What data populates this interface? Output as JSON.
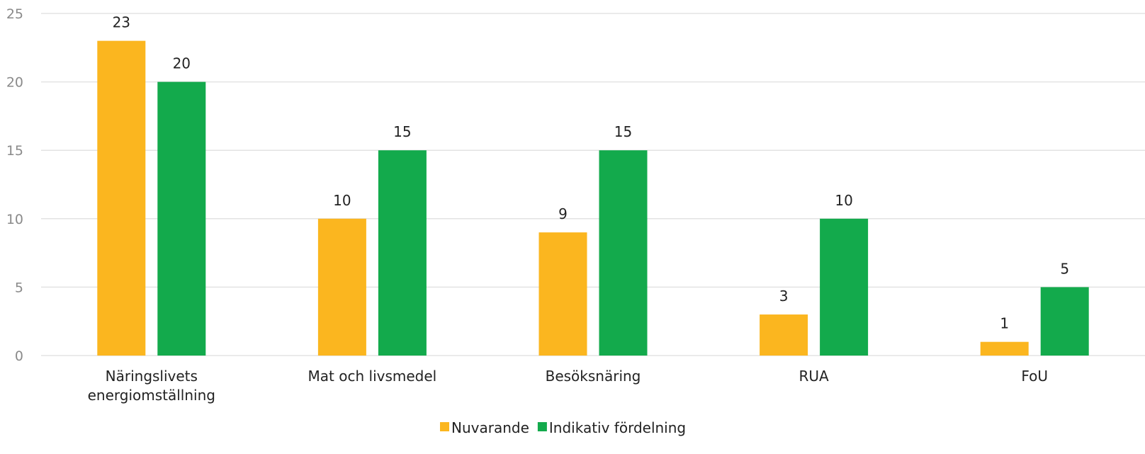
{
  "chart_data": {
    "type": "bar",
    "categories": [
      [
        "Näringslivets",
        "energiomställning"
      ],
      [
        "Mat och livsmedel"
      ],
      [
        "Besöksnäring"
      ],
      [
        "RUA"
      ],
      [
        "FoU"
      ]
    ],
    "series": [
      {
        "name": "Nuvarande",
        "color": "#FBB61F",
        "values": [
          23,
          10,
          9,
          3,
          1
        ]
      },
      {
        "name": "Indikativ fördelning",
        "color": "#13AA4C",
        "values": [
          20,
          15,
          15,
          10,
          5
        ]
      }
    ],
    "ylim": [
      0,
      25
    ],
    "yticks": [
      0,
      5,
      10,
      15,
      20,
      25
    ],
    "grid": true,
    "legend": "bottom-center"
  }
}
